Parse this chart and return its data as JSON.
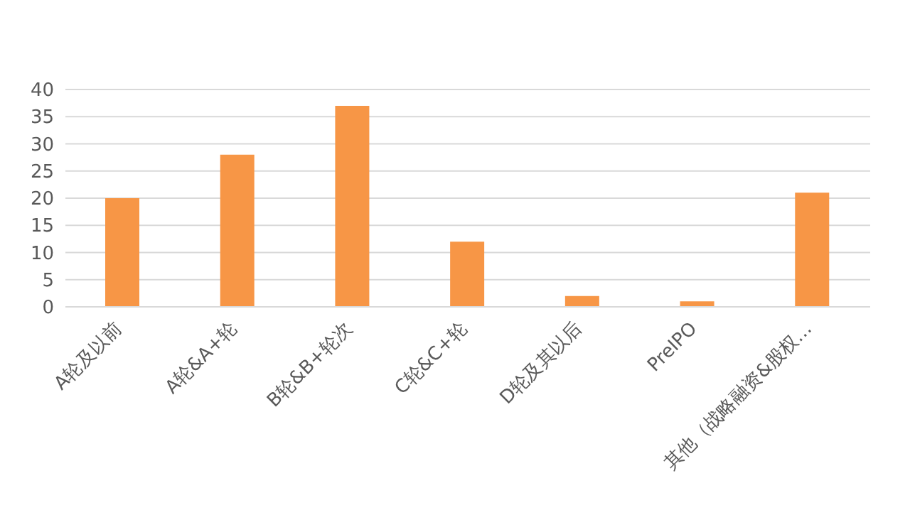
{
  "chart_data": {
    "type": "bar",
    "categories": [
      "A轮及以前",
      "A轮&A+轮",
      "B轮&B+轮次",
      "C轮&C+轮",
      "D轮及其以后",
      "PreIPO",
      "其他（战略融资&股权…"
    ],
    "values": [
      20,
      28,
      37,
      12,
      2,
      1,
      21
    ],
    "color": "#f79646",
    "ylim": [
      0,
      40
    ],
    "yticks": [
      0,
      5,
      10,
      15,
      20,
      25,
      30,
      35,
      40
    ],
    "grid": "y"
  }
}
